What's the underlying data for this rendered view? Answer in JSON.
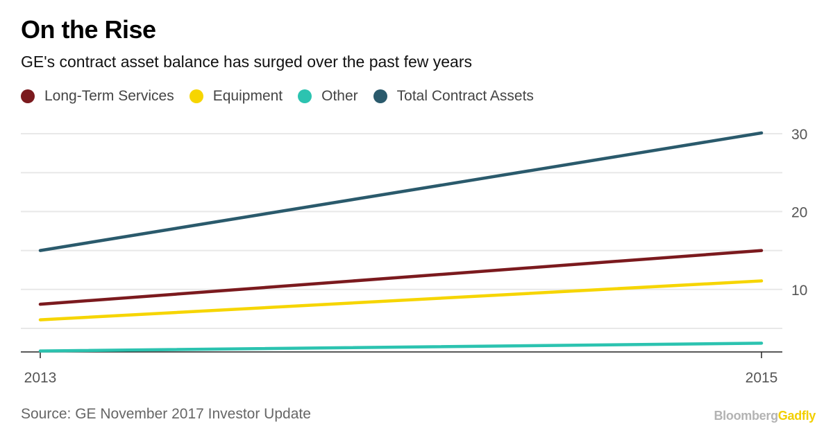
{
  "header": {
    "title": "On the Rise",
    "subtitle": "GE's contract asset balance has surged over the past few years"
  },
  "footer": {
    "source": "Source: GE November 2017 Investor Update",
    "brand_part1": "Bloomberg",
    "brand_part2": "Gadfly"
  },
  "colors": {
    "long_term_services": "#7b1a1e",
    "equipment": "#f6d500",
    "other": "#2cc3b0",
    "total": "#2a5a6c",
    "grid": "#e8e8e8",
    "axis": "#222222",
    "tick_text": "#555555"
  },
  "chart_data": {
    "type": "line",
    "title": "On the Rise",
    "subtitle": "GE's contract asset balance has surged over the past few years",
    "x": [
      "2013",
      "2015"
    ],
    "xlabel": "",
    "ylabel": "",
    "ylim": [
      2,
      32
    ],
    "yticks": [
      10,
      20,
      30
    ],
    "ytick_labels": [
      "10",
      "20",
      "30"
    ],
    "grid": true,
    "legend_position": "top-left",
    "series": [
      {
        "name": "Long-Term Services",
        "values": [
          8.1,
          15.0
        ],
        "color": "#7b1a1e"
      },
      {
        "name": "Equipment",
        "values": [
          6.1,
          11.1
        ],
        "color": "#f6d500"
      },
      {
        "name": "Other",
        "values": [
          2.1,
          3.1
        ],
        "color": "#2cc3b0"
      },
      {
        "name": "Total Contract Assets",
        "values": [
          15.0,
          30.1
        ],
        "color": "#2a5a6c"
      }
    ]
  }
}
